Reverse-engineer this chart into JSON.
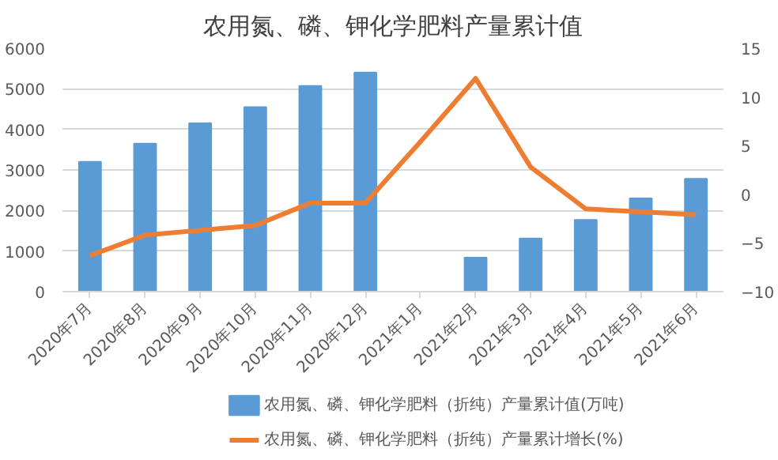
{
  "chart_data": {
    "type": "bar",
    "title": "农用氮、磷、钾化学肥料产量累计值",
    "categories": [
      "2020年7月",
      "2020年8月",
      "2020年9月",
      "2020年10月",
      "2020年11月",
      "2020年12月",
      "2021年1月",
      "2021年2月",
      "2021年3月",
      "2021年4月",
      "2021年5月",
      "2021年6月"
    ],
    "series": [
      {
        "name": "农用氮、磷、钾化学肥料（折纯）产量累计值(万吨)",
        "color": "#5b9bd5",
        "values": [
          3200,
          3650,
          4150,
          4550,
          5070,
          5400,
          null,
          840,
          1310,
          1770,
          2300,
          2780
        ]
      },
      {
        "name": "农用氮、磷、钾化学肥料（折纯）产量累计增长(%)",
        "type": "line",
        "axis": "y2",
        "color": "#ed7d31",
        "values": [
          -6.3,
          -4.2,
          -3.7,
          -3.2,
          -0.9,
          -0.9,
          5.4,
          11.9,
          2.8,
          -1.5,
          -1.8,
          -2.1
        ]
      }
    ],
    "ylim": [
      0,
      6000
    ],
    "yticks": [
      0,
      1000,
      2000,
      3000,
      4000,
      5000,
      6000
    ],
    "y2lim": [
      -10,
      15
    ],
    "y2ticks": [
      -10,
      -5,
      0,
      5,
      10,
      15
    ],
    "grid": "y",
    "legend": "bottom",
    "marker": "none",
    "line_style": "solid"
  }
}
